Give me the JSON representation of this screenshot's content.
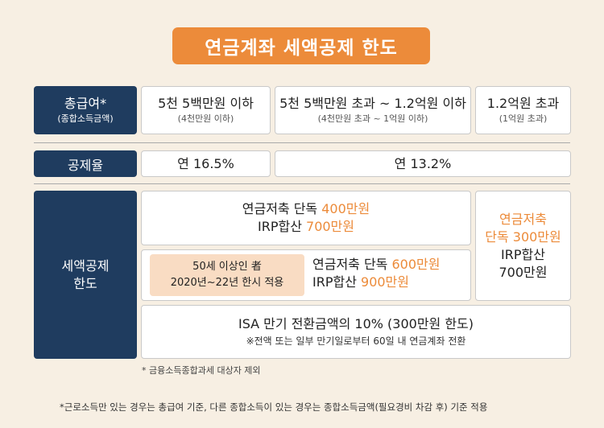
{
  "title": "연금계좌 세액공제 한도",
  "row1": {
    "header_main": "총급여*",
    "header_sub": "(종합소득금액)",
    "col1_main": "5천 5백만원 이하",
    "col1_sub": "(4천만원 이하)",
    "col2_main": "5천 5백만원 초과 ~ 1.2억원 이하",
    "col2_sub": "(4천만원 초과 ~ 1억원 이하)",
    "col3_main": "1.2억원 초과",
    "col3_sub": "(1억원 초과)"
  },
  "row2": {
    "header": "공제율",
    "rate1": "연 16.5%",
    "rate2": "연 13.2%"
  },
  "row3": {
    "header_line1": "세액공제",
    "header_line2": "한도",
    "a_line1_prefix": "연금저축 단독 ",
    "a_line1_amount": "400만원",
    "a_line2_prefix": "IRP합산 ",
    "a_line2_amount": "700만원",
    "senior_line1": "50세 이상인 者",
    "senior_line2": "2020년~22년 한시 적용",
    "b_line1_prefix": "연금저축 단독 ",
    "b_line1_amount": "600만원",
    "b_line2_prefix": "IRP합산 ",
    "b_line2_amount": "900만원",
    "c_line1": "연금저축",
    "c_line2": "단독 300만원",
    "c_line3": "IRP합산",
    "c_line4": "700만원",
    "isa_main": "ISA 만기 전환금액의 10% (300만원 한도)",
    "isa_sub": "※전액 또는 일부 만기일로부터 60일 내 연금계좌 전환"
  },
  "notes": {
    "note1": "* 금융소득종합과세 대상자 제외",
    "note2": "*근로소득만 있는 경우는 총급여 기준, 다른 종합소득이 있는 경우는 종합소득금액(필요경비 차감 후) 기준 적용"
  },
  "colors": {
    "accent": "#ec8b3a",
    "navy": "#1f3c5f",
    "background": "#f7efe3",
    "peach": "#f9dcc3"
  }
}
